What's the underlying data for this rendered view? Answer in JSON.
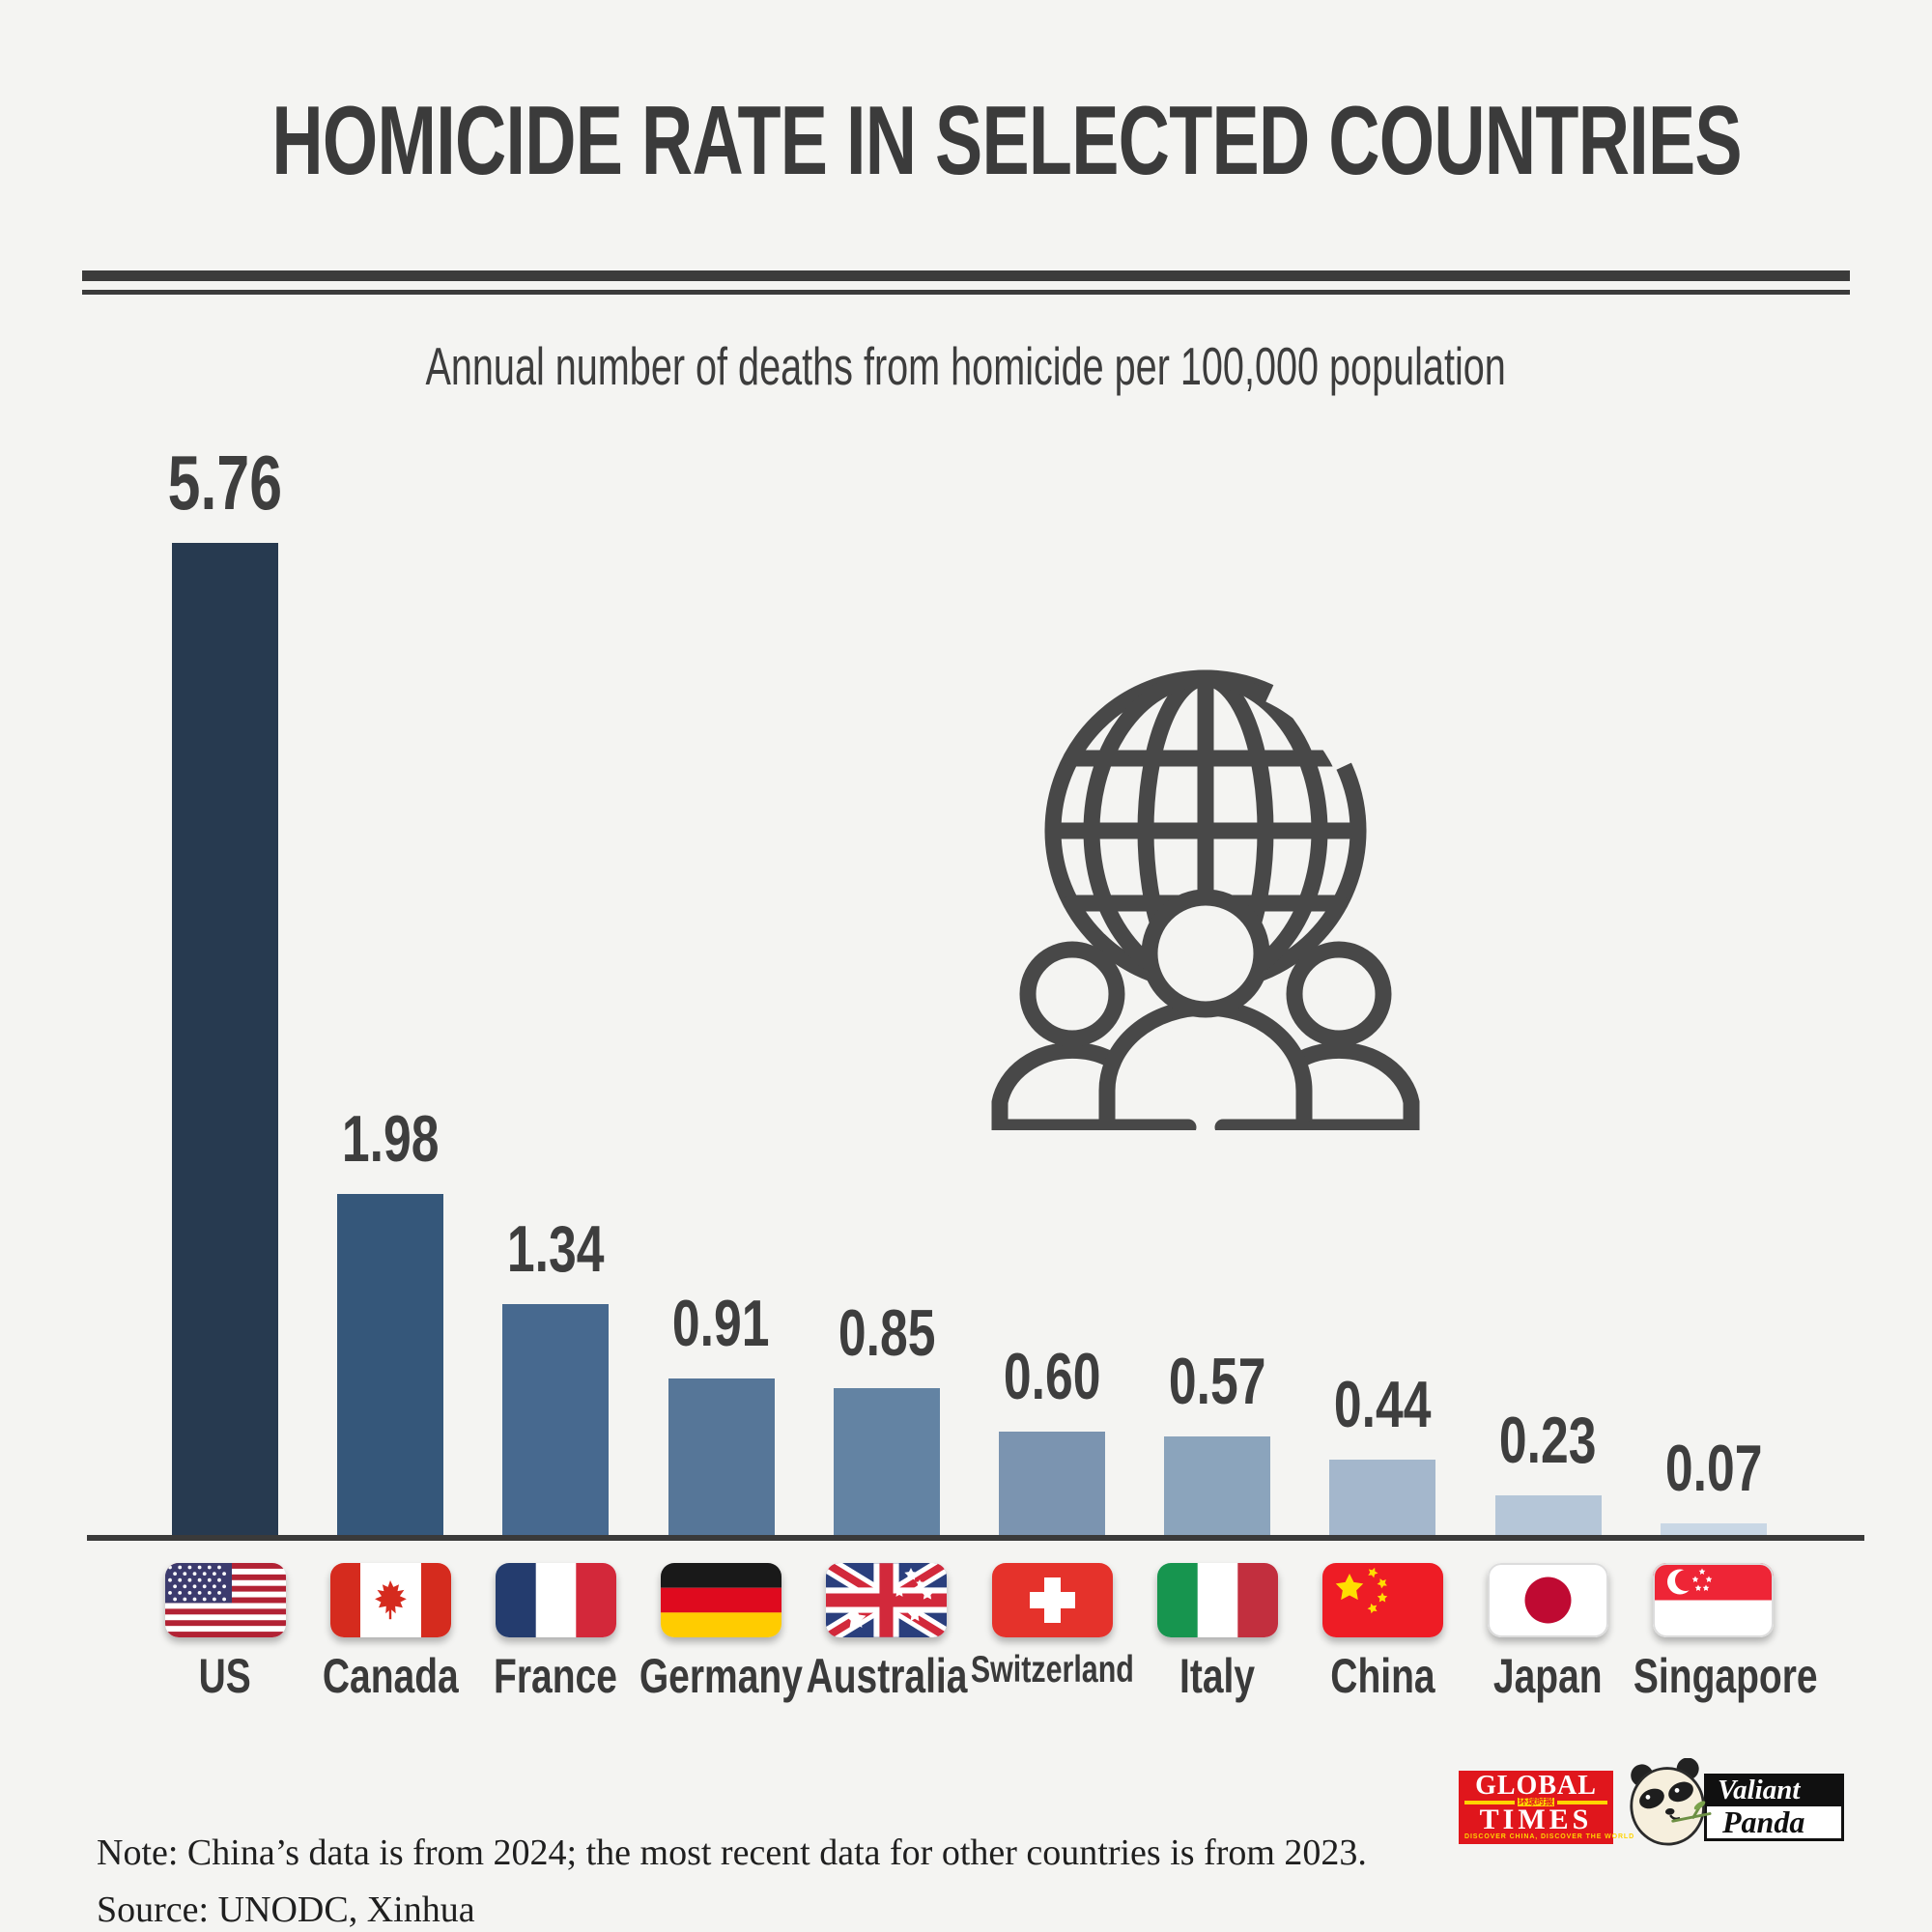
{
  "header": {
    "title": "HOMICIDE RATE IN SELECTED COUNTRIES"
  },
  "chart_data": {
    "type": "bar",
    "title": "Annual number of deaths from homicide per 100,000 population",
    "categories": [
      "US",
      "Canada",
      "France",
      "Germany",
      "Australia",
      "Switzerland",
      "Italy",
      "China",
      "Japan",
      "Singapore"
    ],
    "values": [
      5.76,
      1.98,
      1.34,
      0.91,
      0.85,
      0.6,
      0.57,
      0.44,
      0.23,
      0.07
    ],
    "value_labels": [
      "5.76",
      "1.98",
      "1.34",
      "0.91",
      "0.85",
      "0.60",
      "0.57",
      "0.44",
      "0.23",
      "0.07"
    ],
    "bar_colors": [
      "#273a50",
      "#35577a",
      "#47698f",
      "#567698",
      "#6383a3",
      "#7b94b0",
      "#8ba4bc",
      "#a4b7cc",
      "#b5c6d8",
      "#c9d7e5"
    ],
    "flags": [
      "us-flag",
      "canada-flag",
      "france-flag",
      "germany-flag",
      "australia-flag",
      "switzerland-flag",
      "italy-flag",
      "china-flag",
      "japan-flag",
      "singapore-flag"
    ],
    "xlabel": "",
    "ylabel": "",
    "ylim": [
      0,
      6
    ],
    "grid": false,
    "legend": false
  },
  "icons": {
    "center_art": "globe-with-people"
  },
  "footer": {
    "note": "Note: China’s data is from 2024; the most recent data for other countries is from 2023.",
    "source": "Source: UNODC, Xinhua"
  },
  "logos": {
    "global_times": {
      "word1": "GLOBAL",
      "word2": "TIMES",
      "chinese": "环球时报",
      "tagline": "DISCOVER CHINA, DISCOVER THE WORLD"
    },
    "valiant_panda": {
      "word1": "Valiant",
      "word2": "Panda"
    }
  }
}
